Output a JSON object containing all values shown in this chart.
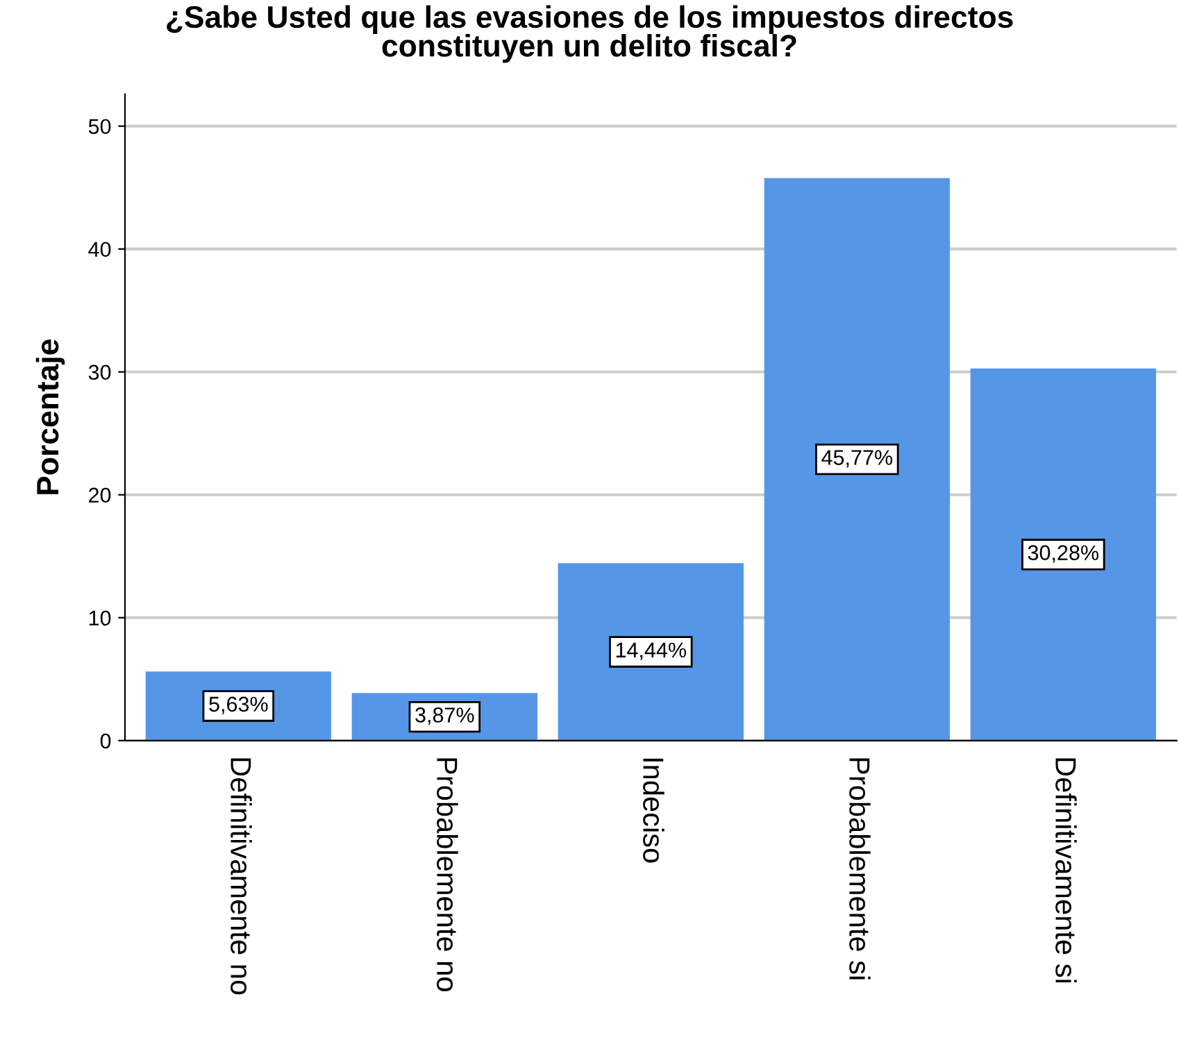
{
  "chart_data": {
    "type": "bar",
    "title": "¿Sabe Usted que las evasiones de los impuestos directos\nconstituyen un delito fiscal?",
    "ylabel": "Porcentaje",
    "categories": [
      "Definitivamente no",
      "Probablemente no",
      "Indeciso",
      "Probablemente si",
      "Definitivamente si"
    ],
    "values": [
      5.63,
      3.87,
      14.44,
      45.77,
      30.28
    ],
    "value_labels": [
      "5,63%",
      "3,87%",
      "14,44%",
      "45,77%",
      "30,28%"
    ],
    "color": "#5596e6",
    "ylim": [
      0,
      52.6
    ],
    "yticks": [
      0,
      10,
      20,
      30,
      40,
      50
    ],
    "grid": "y"
  }
}
